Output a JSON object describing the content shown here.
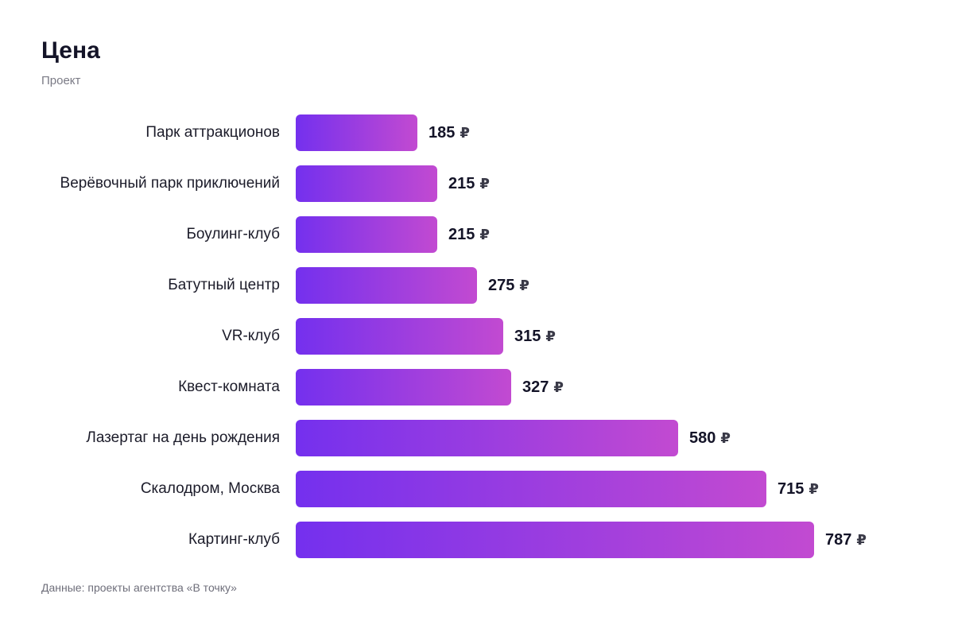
{
  "title": "Цена",
  "subtitle": "Проект",
  "source": "Данные: проекты агентства «В точку»",
  "colors": {
    "bar_start": "#7430ee",
    "bar_end": "#c24ad1",
    "text": "#141428",
    "muted": "#7a7a85"
  },
  "chart_data": {
    "type": "bar",
    "orientation": "horizontal",
    "title": "Цена",
    "subtitle": "Проект",
    "unit": "₽",
    "categories": [
      "Парк аттракционов",
      "Верёвочный парк приключений",
      "Боулинг-клуб",
      "Батутный центр",
      "VR-клуб",
      "Квест-комната",
      "Лазертаг на день рождения",
      "Скалодром, Москва",
      "Картинг-клуб"
    ],
    "values": [
      185,
      215,
      215,
      275,
      315,
      327,
      580,
      715,
      787
    ],
    "xlim": [
      0,
      787
    ],
    "grid": false,
    "legend": "none"
  }
}
